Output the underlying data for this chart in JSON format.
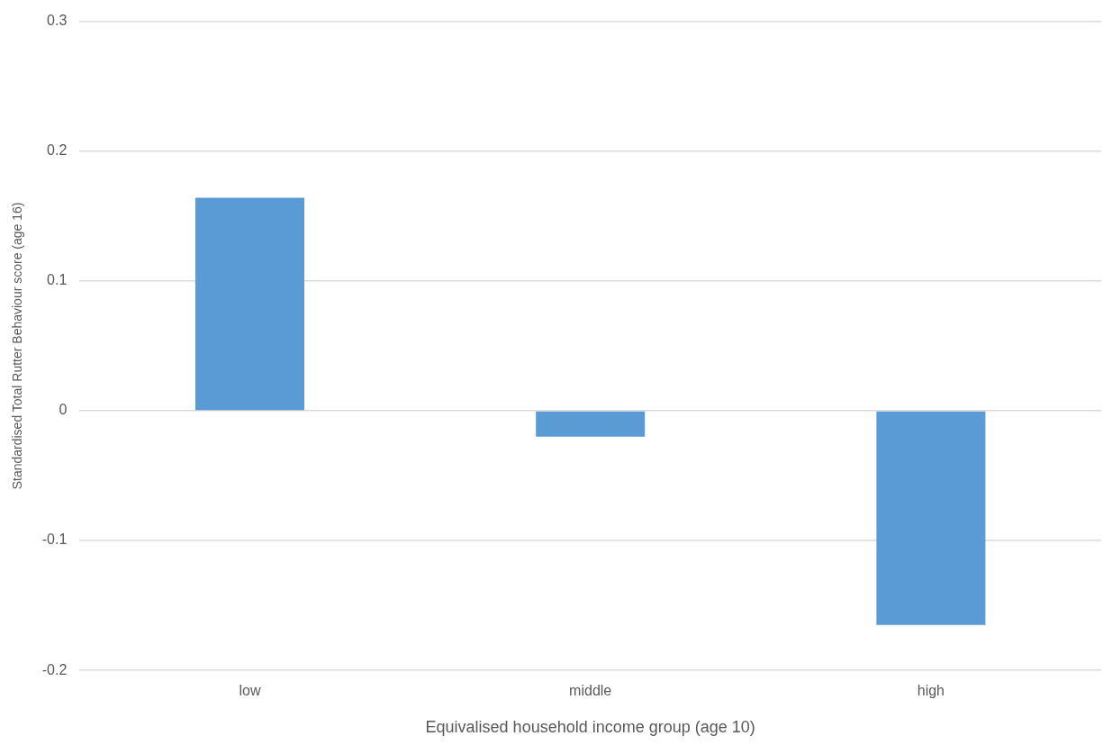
{
  "chart_data": {
    "type": "bar",
    "xlabel": "Equivalised household income group (age 10)",
    "ylabel": "Standardised Total Rutter Behaviour score (age 16)",
    "categories": [
      "low",
      "middle",
      "high"
    ],
    "values": [
      0.164,
      -0.02,
      -0.165
    ],
    "color": "#5b9bd5",
    "ylim": [
      -0.2,
      0.3
    ],
    "yticks": [
      -0.2,
      -0.1,
      0,
      0.1,
      0.2,
      0.3
    ],
    "grid": "y",
    "legend": false
  }
}
